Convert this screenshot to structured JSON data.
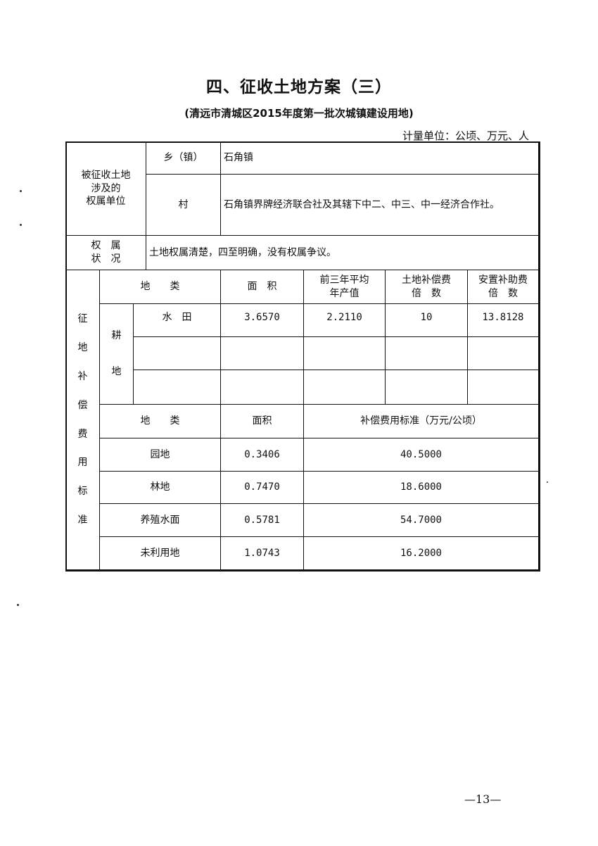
{
  "title": "四、征收土地方案（三）",
  "subtitle": "(清远市清城区2015年度第一批次城镇建设用地)",
  "unit_note": "计量单位：公顷、万元、人",
  "ownership": {
    "label": "被征收土地涉及的权属单位",
    "label_lines": [
      "被征收土地",
      "涉及的",
      "权属单位"
    ],
    "town_label": "乡（镇）",
    "town_value": "石角镇",
    "village_label": "村",
    "village_value": "石角镇界牌经济联合社及其辖下中二、中三、中一经济合作社。"
  },
  "status": {
    "label_lines": [
      "权　属",
      "状　况"
    ],
    "value": "土地权属清楚，四至明确，没有权属争议。"
  },
  "compensation": {
    "section_label_chars": [
      "征",
      "地",
      "补",
      "偿",
      "费",
      "用",
      "标",
      "准"
    ],
    "cultivated_header": {
      "land_type": "地　　类",
      "area": "面　积",
      "avg_output_lines": [
        "前三年平均",
        "年产值"
      ],
      "land_comp_lines": [
        "土地补偿费",
        "倍　数"
      ],
      "resettle_lines": [
        "安置补助费",
        "倍　数"
      ]
    },
    "cultivated_label_chars": [
      "耕",
      "地"
    ],
    "cultivated_rows": [
      {
        "type": "水　田",
        "area": "3.6570",
        "avg_output": "2.2110",
        "land_comp": "10",
        "resettle": "13.8128"
      },
      {
        "type": "",
        "area": "",
        "avg_output": "",
        "land_comp": "",
        "resettle": ""
      },
      {
        "type": "",
        "area": "",
        "avg_output": "",
        "land_comp": "",
        "resettle": ""
      }
    ],
    "other_header": {
      "land_type": "地　　类",
      "area": "面积",
      "standard": "补偿费用标准（万元/公顷）"
    },
    "other_rows": [
      {
        "type": "园地",
        "area": "0.3406",
        "standard": "40.5000"
      },
      {
        "type": "林地",
        "area": "0.7470",
        "standard": "18.6000"
      },
      {
        "type": "养殖水面",
        "area": "0.5781",
        "standard": "54.7000"
      },
      {
        "type": "未利用地",
        "area": "1.0743",
        "standard": "16.2000"
      }
    ]
  },
  "page_number": "—13—"
}
